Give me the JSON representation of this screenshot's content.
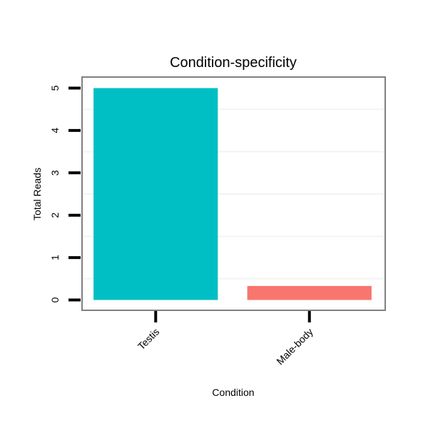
{
  "chart_data": {
    "type": "bar",
    "title": "Condition-specificity",
    "xlabel": "Condition",
    "ylabel": "Total Reads",
    "categories": [
      "Testis",
      "Male-body"
    ],
    "values": [
      5,
      0.33
    ],
    "colors": [
      "#00BFC4",
      "#F8766D"
    ],
    "ylim": [
      -0.25,
      5.25
    ],
    "yticks": [
      0,
      1,
      2,
      3,
      4,
      5
    ],
    "ytick_labels": [
      "0",
      "1",
      "2",
      "3",
      "4",
      "5"
    ],
    "grid": true,
    "legend": "none"
  }
}
